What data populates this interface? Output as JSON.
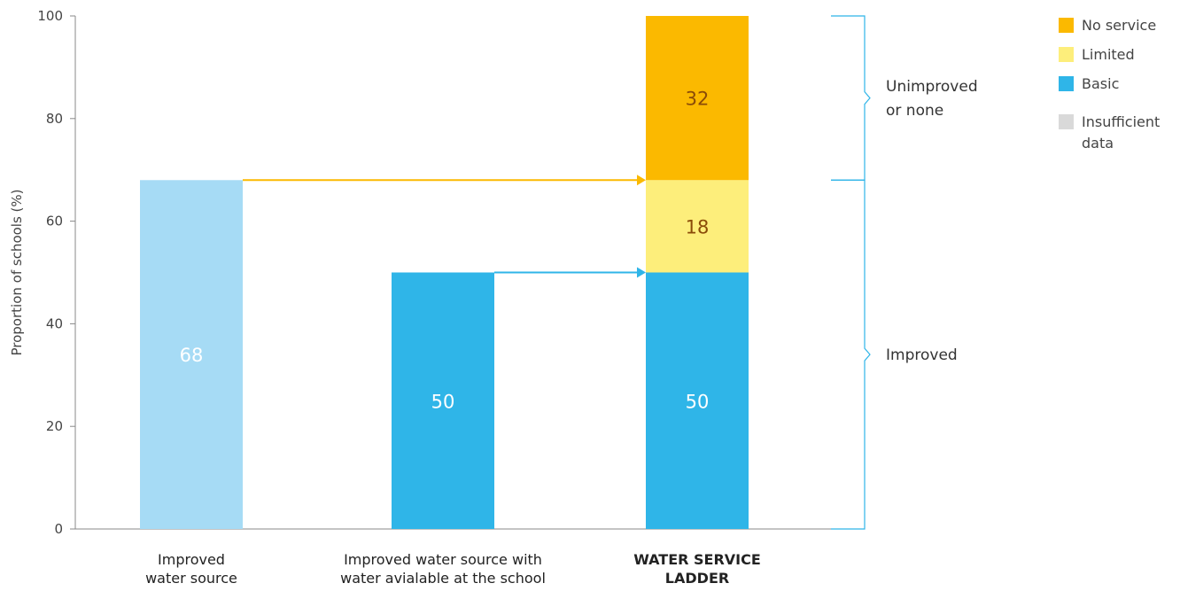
{
  "chart_data": {
    "type": "bar",
    "xlabel": "",
    "ylabel": "Proportion of schools (%)",
    "ylim": [
      0,
      100
    ],
    "yticks": [
      0,
      20,
      40,
      60,
      80,
      100
    ],
    "grid": false,
    "categories": [
      {
        "lines": [
          "Improved",
          "water source"
        ],
        "bold": false
      },
      {
        "lines": [
          "Improved water source with",
          "water avialable at the school"
        ],
        "bold": false
      },
      {
        "lines": [
          "WATER SERVICE",
          "LADDER"
        ],
        "bold": true
      }
    ],
    "bars": [
      {
        "category_index": 0,
        "segments": [
          {
            "series": "Improved water source",
            "value": 68,
            "label": "68",
            "color": "#a6dbf5",
            "label_color": "#ffffff"
          }
        ]
      },
      {
        "category_index": 1,
        "segments": [
          {
            "series": "Improved water source with water available",
            "value": 50,
            "label": "50",
            "color": "#2fb5e8",
            "label_color": "#ffffff"
          }
        ]
      },
      {
        "category_index": 2,
        "segments": [
          {
            "series": "Basic",
            "value": 50,
            "label": "50",
            "color": "#2fb5e8",
            "label_color": "#ffffff"
          },
          {
            "series": "Limited",
            "value": 18,
            "label": "18",
            "color": "#fdee7b",
            "label_color": "#8a4b08"
          },
          {
            "series": "No service",
            "value": 32,
            "label": "32",
            "color": "#fbb900",
            "label_color": "#8a4b08"
          }
        ]
      }
    ],
    "arrows": [
      {
        "from_category": 0,
        "to_category": 2,
        "y": 68,
        "color": "#fbb900"
      },
      {
        "from_category": 1,
        "to_category": 2,
        "y": 50,
        "color": "#2fb5e8"
      }
    ],
    "brackets": [
      {
        "from": 68,
        "to": 100,
        "label_lines": [
          "Unimproved",
          "or none"
        ],
        "color": "#2fb5e8"
      },
      {
        "from": 0,
        "to": 68,
        "label_lines": [
          "Improved"
        ],
        "color": "#2fb5e8"
      }
    ],
    "legend": {
      "position": "top-right",
      "items": [
        {
          "label": "No service",
          "color": "#fbb900"
        },
        {
          "label": "Limited",
          "color": "#fdee7b"
        },
        {
          "label": "Basic",
          "color": "#2fb5e8"
        },
        {
          "label": "Insufficient data",
          "lines": [
            "Insufficient",
            "data"
          ],
          "color": "#d9d9d9"
        }
      ]
    }
  }
}
